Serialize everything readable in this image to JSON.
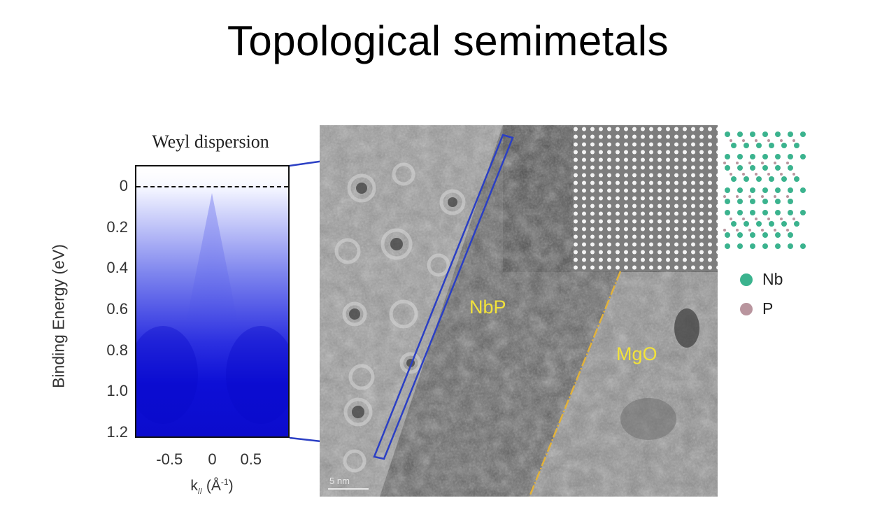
{
  "slide": {
    "title": "Topological semimetals"
  },
  "arpes_panel": {
    "title": "Weyl dispersion",
    "ylabel": "Binding Energy (eV)",
    "xlabel_main": "k",
    "xlabel_sub": "//",
    "xlabel_unit_prefix": "(Å",
    "xlabel_unit_sup": "-1",
    "xlabel_unit_suffix": ")",
    "colormap_color": "#0a0ad8"
  },
  "chart_data": {
    "type": "heatmap",
    "title": "Weyl dispersion",
    "xlabel": "k// (Å-1)",
    "ylabel": "Binding Energy (eV)",
    "xlim": [
      -1.0,
      1.0
    ],
    "ylim": [
      1.2,
      -0.1
    ],
    "x_ticks": [
      {
        "value": -0.5,
        "label": "-0.5"
      },
      {
        "value": 0,
        "label": "0"
      },
      {
        "value": 0.5,
        "label": "0.5"
      }
    ],
    "y_ticks": [
      {
        "value": 0,
        "label": "0"
      },
      {
        "value": 0.2,
        "label": "0.2"
      },
      {
        "value": 0.4,
        "label": "0.4"
      },
      {
        "value": 0.6,
        "label": "0.6"
      },
      {
        "value": 0.8,
        "label": "0.8"
      },
      {
        "value": 1.0,
        "label": "1.0"
      },
      {
        "value": 1.2,
        "label": "1.2"
      }
    ],
    "fermi_level": 0
  },
  "tem_image": {
    "label_nbp": "NbP",
    "label_mgo": "MgO",
    "scalebar_label": "5 nm",
    "label_color": "#f2e23a",
    "interface_line_color": "#e2b23a",
    "zoom_box_color": "#2b3fc4"
  },
  "crystal_legend": {
    "nb_label": "Nb",
    "nb_color": "#3bb38e",
    "p_label": "P",
    "p_color": "#b9959e"
  }
}
